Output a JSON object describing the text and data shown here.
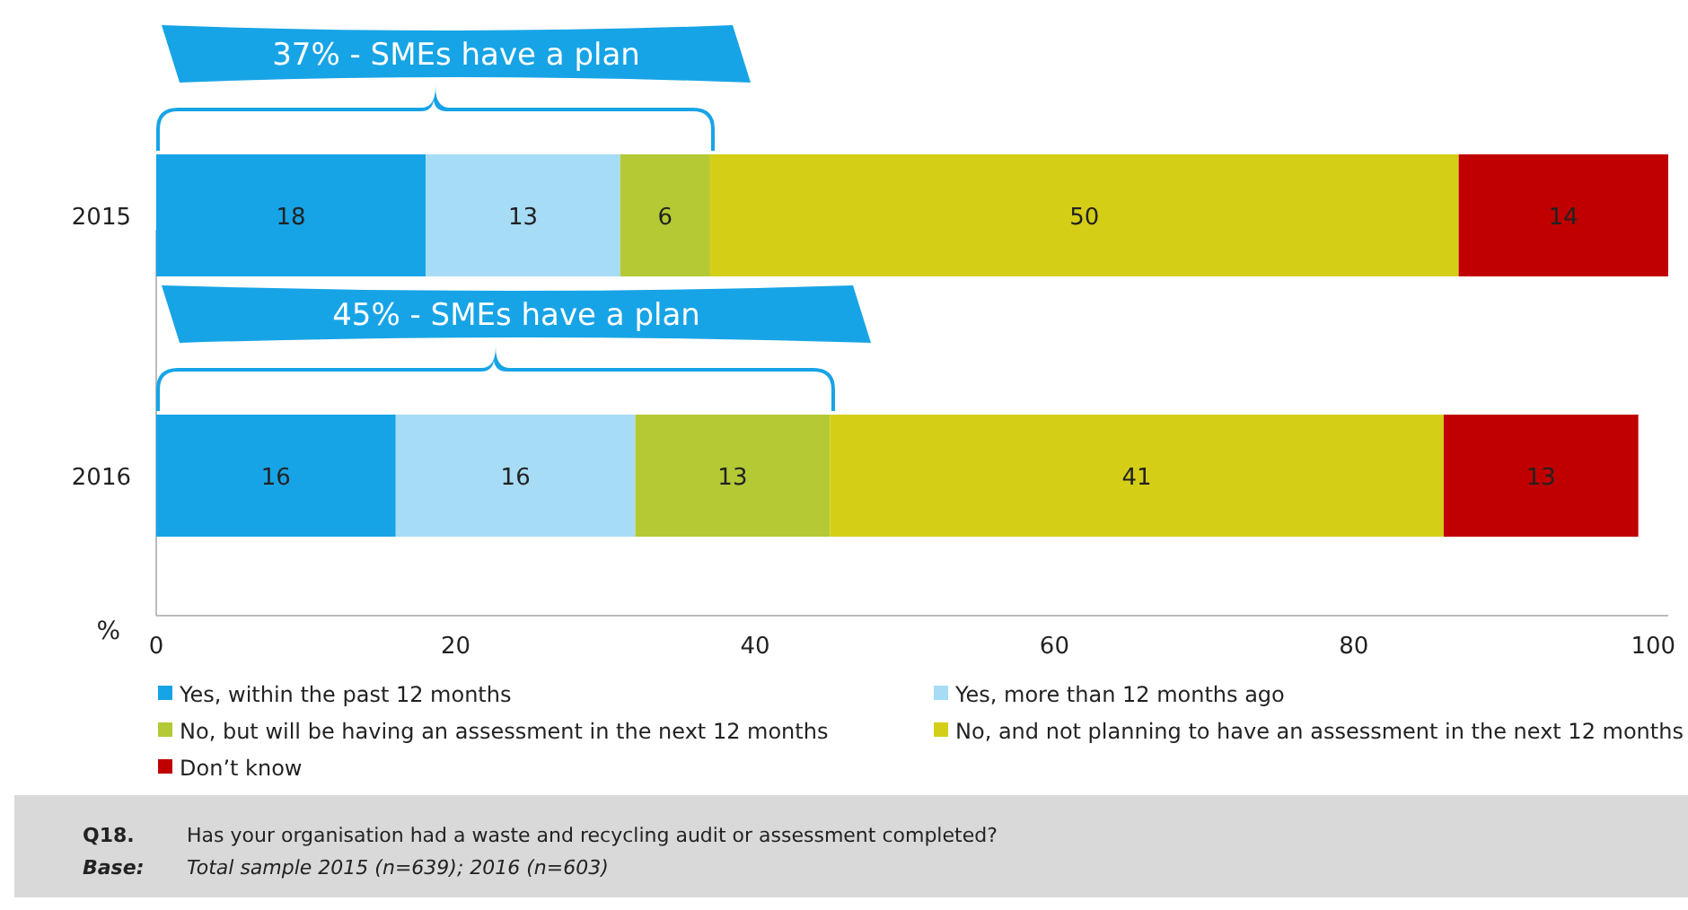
{
  "chart_data": {
    "type": "bar",
    "orientation": "horizontal",
    "stacked": true,
    "categories": [
      "2015",
      "2016"
    ],
    "xlabel": "%",
    "series": [
      {
        "name": "Yes, within the past 12 months",
        "color": "#17a4e6",
        "values": [
          18,
          16
        ]
      },
      {
        "name": "Yes, more than 12 months ago",
        "color": "#a6dcf5",
        "values": [
          13,
          16
        ]
      },
      {
        "name": "No, but will be having an assessment in the next 12 months",
        "color": "#b5c935",
        "values": [
          6,
          13
        ]
      },
      {
        "name": "No, and not planning to have an assessment in the next 12 months",
        "color": "#d4cf16",
        "values": [
          50,
          41
        ]
      },
      {
        "name": "Don’t know",
        "color": "#c00000",
        "values": [
          14,
          13
        ]
      }
    ],
    "xlim": [
      0,
      101
    ],
    "xticks": [
      0,
      20,
      40,
      60,
      80,
      100
    ],
    "data_labels": true,
    "legend": "bottom",
    "grid": false,
    "annotations": [
      "37% - SMEs have a plan",
      "45% - SMEs have a plan",
      "Q18.",
      "Has your organisation had a waste and recycling audit or assessment completed?",
      "Base:",
      "Total sample 2015 (n=639); 2016 (n=603)"
    ]
  }
}
